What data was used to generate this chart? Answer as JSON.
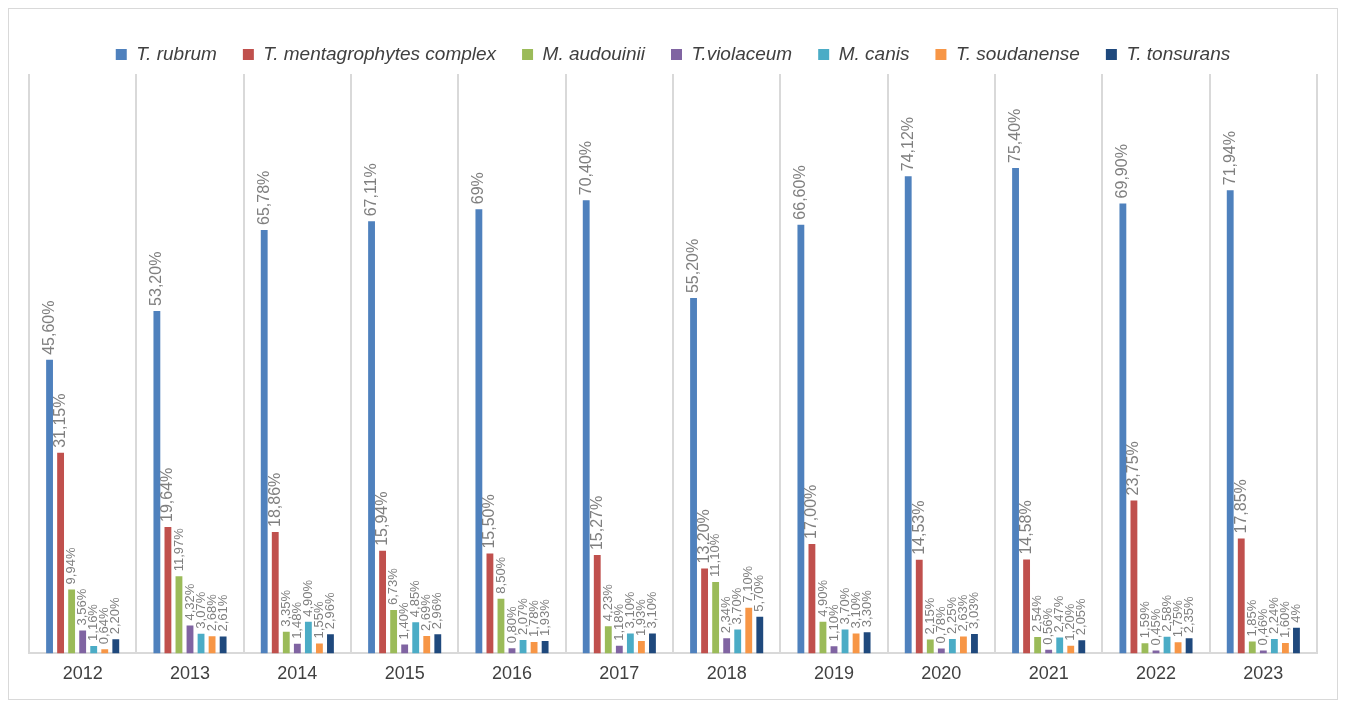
{
  "chart_data": {
    "type": "bar",
    "categories": [
      "2012",
      "2013",
      "2014",
      "2015",
      "2016",
      "2017",
      "2018",
      "2019",
      "2020",
      "2021",
      "2022",
      "2023"
    ],
    "series": [
      {
        "name": "T. rubrum",
        "color": "#4f81bd",
        "values": [
          45.6,
          53.2,
          65.78,
          67.11,
          69,
          70.4,
          55.2,
          66.6,
          74.12,
          75.4,
          69.9,
          71.94
        ],
        "value_labels": [
          "45,60%",
          "53,20%",
          "65,78%",
          "67,11%",
          "69%",
          "70,40%",
          "55,20%",
          "66,60%",
          "74,12%",
          "75,40%",
          "69,90%",
          "71,94%"
        ]
      },
      {
        "name": "T. mentagrophytes complex",
        "color": "#c0504d",
        "values": [
          31.15,
          19.64,
          18.86,
          15.94,
          15.5,
          15.27,
          13.2,
          17.0,
          14.53,
          14.58,
          23.75,
          17.85
        ],
        "value_labels": [
          "31,15%",
          "19,64%",
          "18,86%",
          "15,94%",
          "15,50%",
          "15,27%",
          "13,20%",
          "17,00%",
          "14,53%",
          "14,58%",
          "23,75%",
          "17,85%"
        ]
      },
      {
        "name": "M. audouinii",
        "color": "#9bbb59",
        "values": [
          9.94,
          11.97,
          3.35,
          6.73,
          8.5,
          4.23,
          11.1,
          4.9,
          2.15,
          2.54,
          1.59,
          1.85
        ],
        "value_labels": [
          "9,94%",
          "11,97%",
          "3,35%",
          "6,73%",
          "8,50%",
          "4,23%",
          "11,10%",
          "4,90%",
          "2,15%",
          "2,54%",
          "1,59%",
          "1,85%"
        ]
      },
      {
        "name": "T.violaceum",
        "color": "#8064a2",
        "values": [
          3.56,
          4.32,
          1.48,
          1.4,
          0.8,
          1.18,
          2.34,
          1.1,
          0.78,
          0.56,
          0.45,
          0.46
        ],
        "value_labels": [
          "3,56%",
          "4,32%",
          "1,48%",
          "1,40%",
          "0,80%",
          "1,18%",
          "2,34%",
          "1,10%",
          "0,78%",
          "0,56%",
          "0,45%",
          "0,46%"
        ]
      },
      {
        "name": "M. canis",
        "color": "#4bacc6",
        "values": [
          1.16,
          3.07,
          4.9,
          4.85,
          2.07,
          3.1,
          3.7,
          3.7,
          2.25,
          2.47,
          2.58,
          2.24
        ],
        "value_labels": [
          "1,16%",
          "3,07%",
          "4,90%",
          "4,85%",
          "2,07%",
          "3,10%",
          "3,70%",
          "3,70%",
          "2,25%",
          "2,47%",
          "2,58%",
          "2,24%"
        ]
      },
      {
        "name": "T. soudanense",
        "color": "#f79646",
        "values": [
          0.64,
          2.68,
          1.55,
          2.69,
          1.78,
          1.93,
          7.1,
          3.1,
          2.63,
          1.2,
          1.75,
          1.6
        ],
        "value_labels": [
          "0,64%",
          "2,68%",
          "1,55%",
          "2,69%",
          "1,78%",
          "1,93%",
          "7,10%",
          "3,10%",
          "2,63%",
          "1,20%",
          "1,75%",
          "1,60%"
        ]
      },
      {
        "name": "T. tonsurans",
        "color": "#1f497d",
        "values": [
          2.2,
          2.61,
          2.96,
          2.96,
          1.93,
          3.1,
          5.7,
          3.3,
          3.03,
          2.05,
          2.35,
          4
        ],
        "value_labels": [
          "2,20%",
          "2,61%",
          "2,96%",
          "2,96%",
          "1,93%",
          "3,10%",
          "5,70%",
          "3,30%",
          "3,03%",
          "2,05%",
          "2,35%",
          "4%"
        ]
      }
    ],
    "legend": "top",
    "grid": "x",
    "tick_labels": "x"
  }
}
